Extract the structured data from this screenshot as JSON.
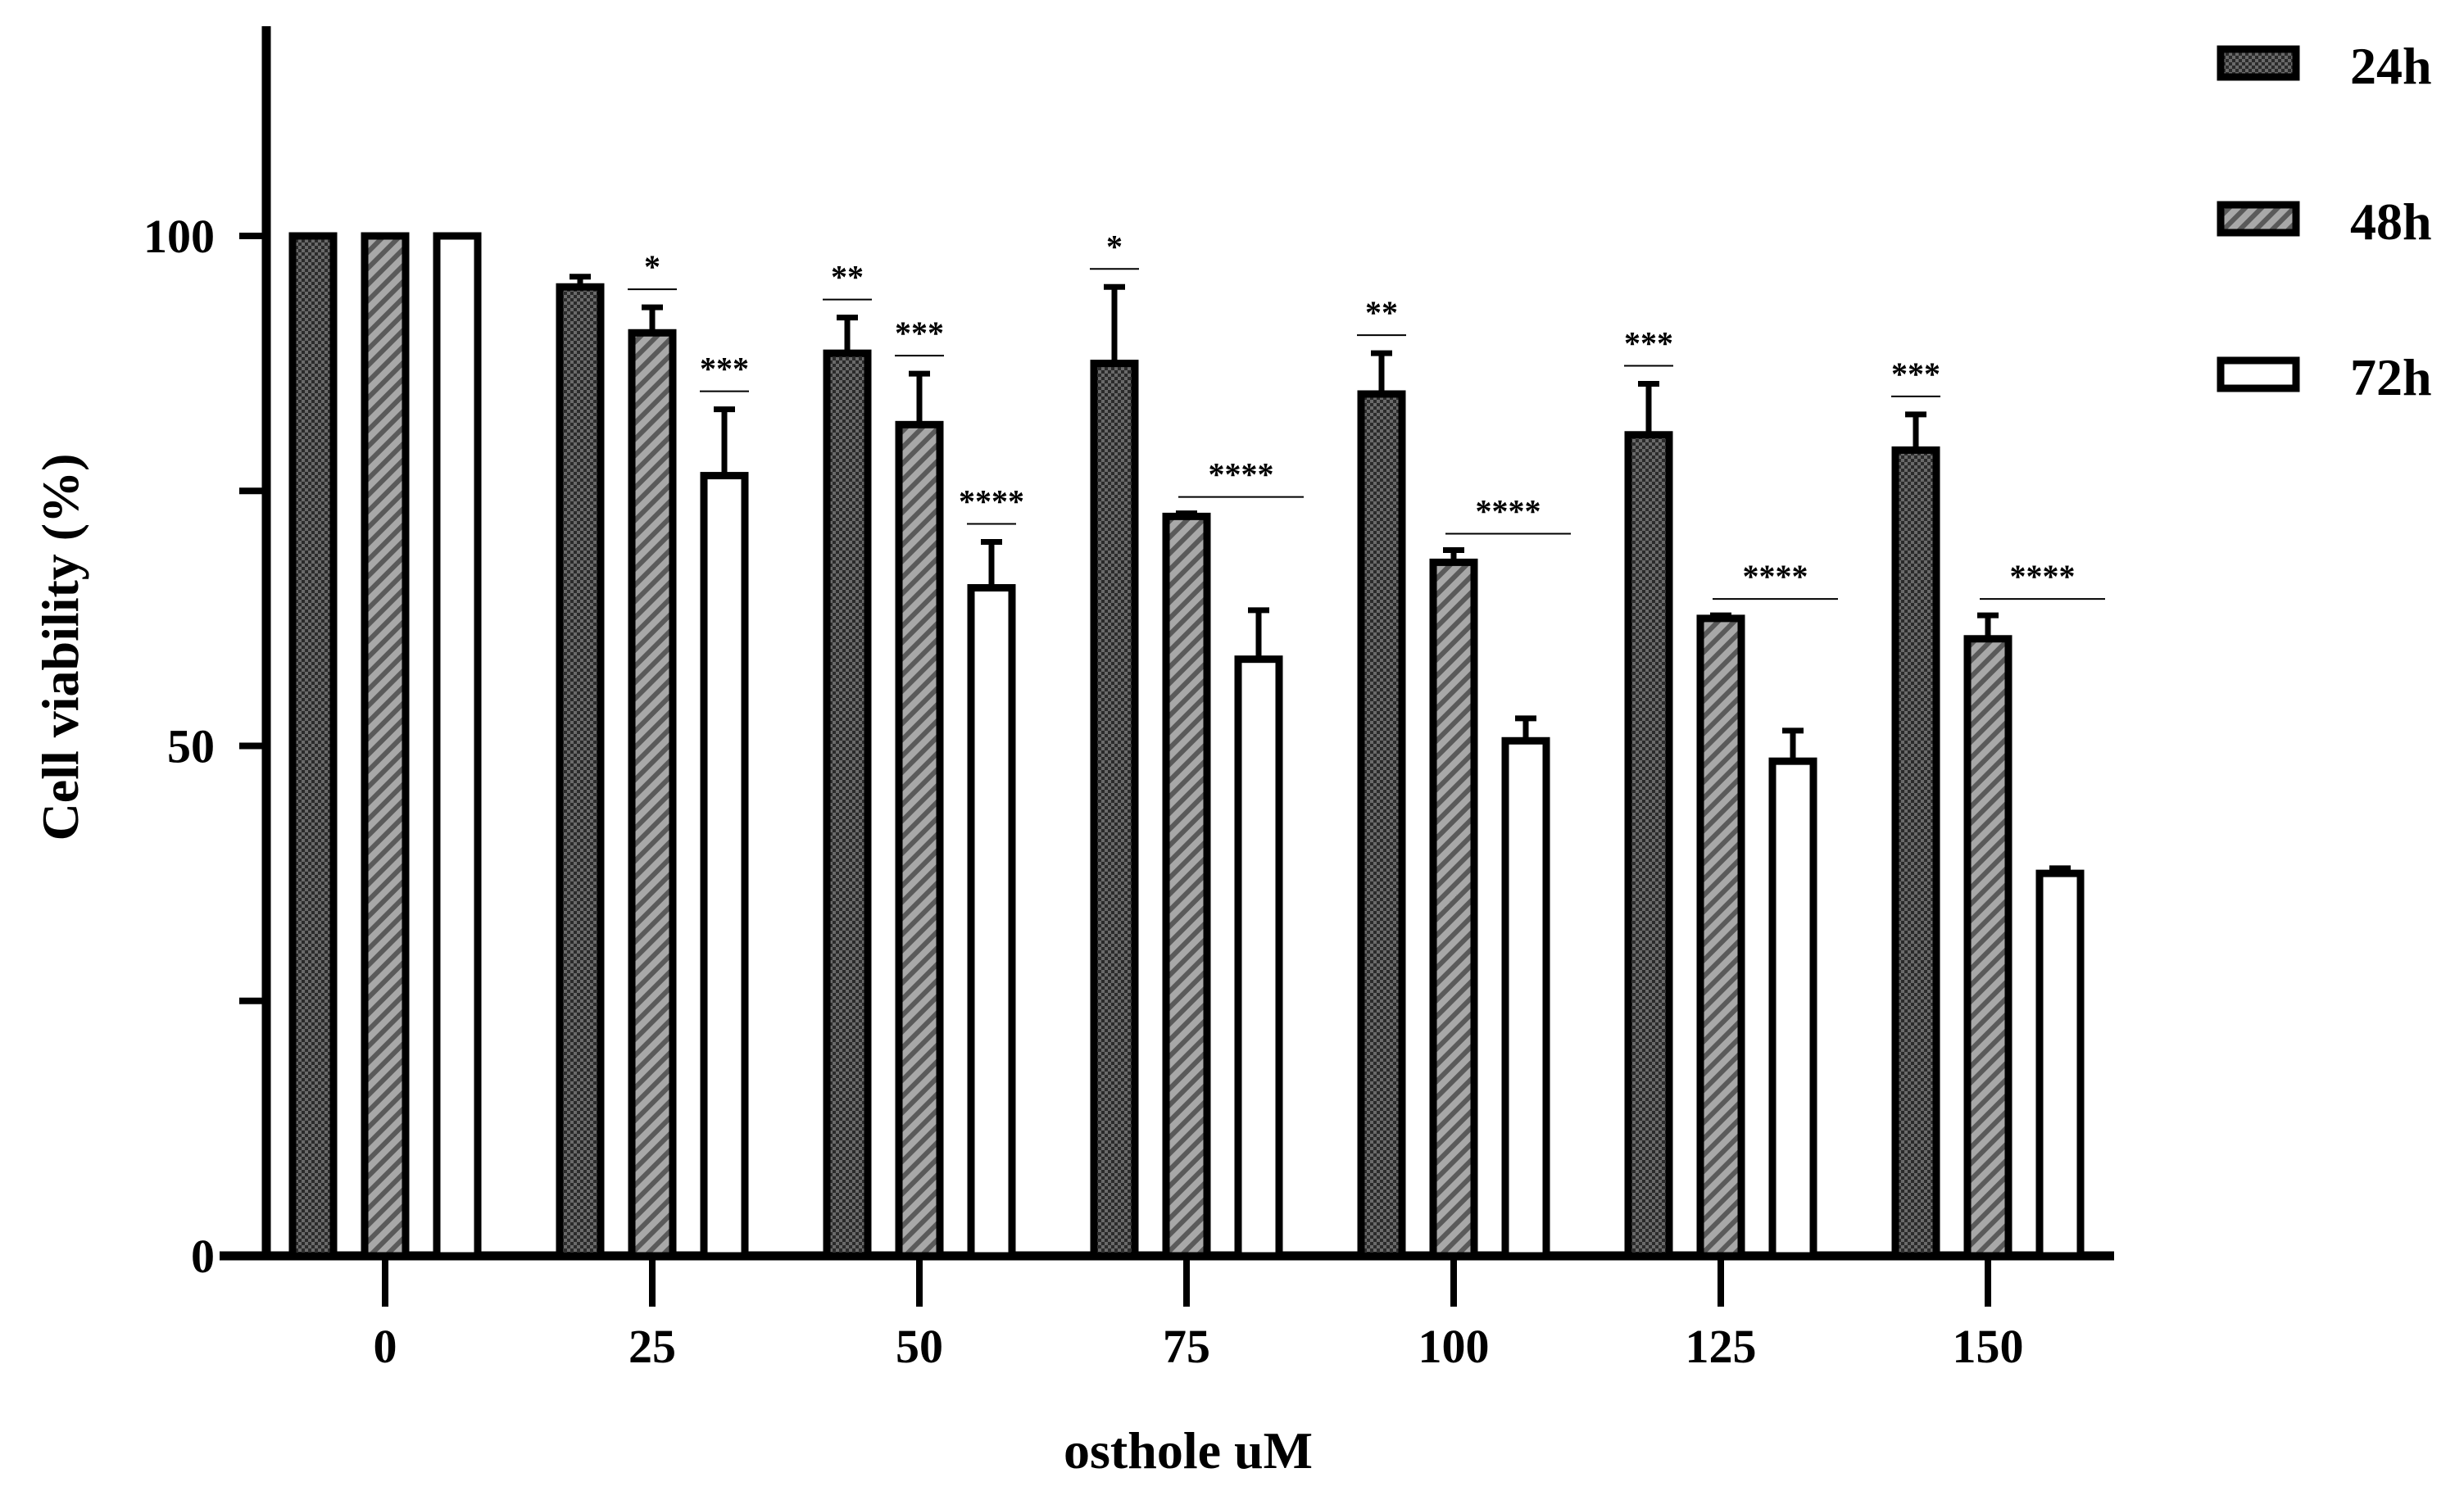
{
  "chart_data": {
    "type": "bar",
    "xlabel": "osthole uM",
    "ylabel": "Cell viability (%)",
    "ylim": [
      0,
      120
    ],
    "yticks": [
      0,
      25,
      50,
      75,
      100
    ],
    "ytick_labels": [
      "0",
      "50",
      "100"
    ],
    "categories": [
      "0",
      "25",
      "50",
      "75",
      "100",
      "125",
      "150"
    ],
    "legend_position": "top-right",
    "grid": false,
    "series": [
      {
        "name": "24h",
        "pattern": "checker",
        "fill": "#3a3a3a",
        "values": [
          100,
          95,
          88.5,
          87.5,
          84.5,
          80.5,
          79
        ],
        "errors": [
          0,
          1,
          3.5,
          7.5,
          4,
          5,
          3.5
        ],
        "significance": [
          "",
          "",
          "**",
          "*",
          "**",
          "***",
          "***"
        ]
      },
      {
        "name": "48h",
        "pattern": "hatch",
        "fill": "#9a9a9a",
        "values": [
          100,
          90.5,
          81.5,
          72.5,
          68,
          62.5,
          60.5
        ],
        "errors": [
          0,
          2.5,
          5,
          0.3,
          1.2,
          0.3,
          2.3
        ],
        "significance": [
          "",
          "*",
          "***",
          "",
          "",
          "",
          ""
        ]
      },
      {
        "name": "72h",
        "pattern": "solid",
        "fill": "#ffffff",
        "values": [
          100,
          76.5,
          65.5,
          58.5,
          50.5,
          48.5,
          37.5
        ],
        "errors": [
          0,
          6.5,
          4.5,
          4.8,
          2.2,
          3,
          0.5
        ],
        "significance": [
          "",
          "***",
          "****",
          "",
          "",
          "",
          ""
        ]
      }
    ],
    "group_significance": [
      {
        "category": "75",
        "span": "48h-72h",
        "label": "****"
      },
      {
        "category": "100",
        "span": "48h-72h",
        "label": "****"
      },
      {
        "category": "125",
        "span": "48h-72h",
        "label": "****"
      },
      {
        "category": "150",
        "span": "48h-72h",
        "label": "****"
      }
    ]
  }
}
